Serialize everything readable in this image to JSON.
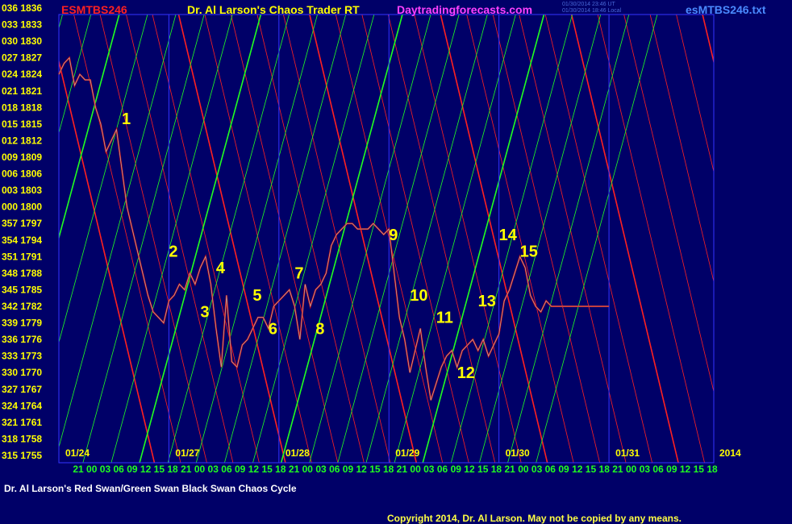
{
  "header": {
    "symbol": "ESMTBS246",
    "title": "Dr. Al Larson's Chaos Trader RT",
    "site": "Daytradingforecasts.com",
    "timestamp_line1": "01/30/2014 23:46 UT",
    "timestamp_line2": "01/30/2014 18:46 Local",
    "filename": "esMTBS246.txt"
  },
  "footer": {
    "caption": "Dr. Al Larson's Red Swan/Green Swan Black Swan Chaos Cycle",
    "copyright": "Copyright 2014, Dr. Al Larson. May not be copied by any means."
  },
  "colors": {
    "background": "#000068",
    "price_line": "#d40000",
    "price_highlight": "#aaaaaa",
    "red_lines": "#ff2020",
    "green_lines": "#20ff20",
    "frame": "#3333ff",
    "axis_label": "#ffff00",
    "time_label": "#20ff20",
    "annotation": "#ffff00",
    "symbol_color": "#ff2020",
    "title_color": "#ffff00",
    "site_color": "#ff40ff",
    "filename_color": "#4a8aff"
  },
  "chart_data": {
    "type": "line",
    "title": "",
    "xlabel": "",
    "ylabel": "",
    "xlim": [
      0,
      125
    ],
    "ylim": [
      1755,
      1836
    ],
    "y_tick_labels": [
      "036 1836",
      "033 1833",
      "030 1830",
      "027 1827",
      "024 1824",
      "021 1821",
      "018 1818",
      "015 1815",
      "012 1812",
      "009 1809",
      "006 1806",
      "003 1803",
      "000 1800",
      "357 1797",
      "354 1794",
      "351 1791",
      "348 1788",
      "345 1785",
      "342 1782",
      "339 1779",
      "336 1776",
      "333 1773",
      "330 1770",
      "327 1767",
      "324 1764",
      "321 1761",
      "318 1758",
      "315 1755"
    ],
    "y_tick_values": [
      1836,
      1833,
      1830,
      1827,
      1824,
      1821,
      1818,
      1815,
      1812,
      1809,
      1806,
      1803,
      1800,
      1797,
      1794,
      1791,
      1788,
      1785,
      1782,
      1779,
      1776,
      1773,
      1770,
      1767,
      1764,
      1761,
      1758,
      1755
    ],
    "x_tick_labels": [
      "21",
      "00",
      "03",
      "06",
      "09",
      "12",
      "15",
      "18",
      "21",
      "00",
      "03",
      "06",
      "09",
      "12",
      "15",
      "18",
      "21",
      "00",
      "03",
      "06",
      "09",
      "12",
      "15",
      "18",
      "21",
      "00",
      "03",
      "06",
      "09",
      "12",
      "15",
      "18",
      "21",
      "00",
      "03",
      "06",
      "09",
      "12",
      "15",
      "18",
      "21",
      "00",
      "03",
      "06",
      "09",
      "12",
      "15",
      "18"
    ],
    "day_labels": [
      {
        "label": "01/24",
        "x": 0
      },
      {
        "label": "01/27",
        "x": 21
      },
      {
        "label": "01/28",
        "x": 42
      },
      {
        "label": "01/29",
        "x": 63
      },
      {
        "label": "01/30",
        "x": 84
      },
      {
        "label": "01/31",
        "x": 105
      },
      {
        "label": "2014",
        "x": 126
      }
    ],
    "day_separators": [
      21,
      42,
      63,
      84,
      105
    ],
    "series": [
      {
        "x": [
          0,
          1,
          2,
          3,
          4,
          5,
          6,
          7,
          8,
          9,
          10,
          11,
          12,
          13,
          14,
          15,
          16,
          17,
          18,
          19,
          20,
          21,
          22,
          23,
          24,
          25,
          26,
          27,
          28,
          29,
          30,
          31,
          32,
          33,
          34,
          35,
          36,
          37,
          38,
          39,
          40,
          41,
          42,
          43,
          44,
          45,
          46,
          47,
          48,
          49,
          50,
          51,
          52,
          53,
          54,
          55,
          56,
          57,
          58,
          59,
          60,
          61,
          62,
          63,
          64,
          65,
          66,
          67,
          68,
          69,
          70,
          71,
          72,
          73,
          74,
          75,
          76,
          77,
          78,
          79,
          80,
          81,
          82,
          83,
          84,
          85,
          86,
          87,
          88,
          89,
          90,
          91,
          92,
          93,
          94,
          95,
          96,
          97,
          98,
          99,
          100,
          101,
          102,
          103,
          104,
          105
        ],
        "y": [
          1824,
          1826,
          1827,
          1822,
          1824,
          1823,
          1823,
          1818,
          1815,
          1810,
          1812,
          1814,
          1807,
          1800,
          1796,
          1792,
          1788,
          1784,
          1781,
          1780,
          1779,
          1783,
          1784,
          1786,
          1785,
          1788,
          1786,
          1789,
          1791,
          1786,
          1778,
          1771,
          1784,
          1772,
          1771,
          1775,
          1776,
          1778,
          1780,
          1780,
          1778,
          1782,
          1783,
          1784,
          1785,
          1782,
          1776,
          1786,
          1782,
          1785,
          1786,
          1788,
          1793,
          1795,
          1796,
          1797,
          1797,
          1796,
          1796,
          1796,
          1797,
          1796,
          1795,
          1796,
          1788,
          1780,
          1776,
          1770,
          1774,
          1778,
          1771,
          1765,
          1768,
          1771,
          1773,
          1774,
          1771,
          1774,
          1775,
          1776,
          1774,
          1776,
          1773,
          1775,
          1777,
          1783,
          1785,
          1788,
          1791,
          1789,
          1784,
          1782,
          1781,
          1783,
          1782,
          1782,
          1782,
          1782,
          1782,
          1782,
          1782,
          1782,
          1782,
          1782,
          1782,
          1782
        ]
      }
    ],
    "red_line_slope": -4.2,
    "red_line_intercepts": [
      -9,
      12,
      33,
      54,
      75,
      96,
      117,
      138,
      159,
      180,
      201,
      222,
      243,
      264,
      285,
      306,
      327,
      348,
      369,
      390,
      411,
      432,
      453,
      474,
      495,
      516,
      537,
      558,
      579,
      600
    ],
    "green_line_slope": 3.7,
    "green_line_intercepts": [
      -180,
      -160,
      -140,
      -120,
      -100,
      -80,
      -60,
      -40,
      -20,
      0,
      20,
      40,
      60,
      80,
      100,
      120,
      140,
      160,
      180,
      200,
      220,
      240,
      260,
      280,
      300
    ],
    "annotations": [
      {
        "label": "1",
        "x": 12,
        "y": 1815
      },
      {
        "label": "2",
        "x": 21,
        "y": 1791
      },
      {
        "label": "3",
        "x": 27,
        "y": 1780
      },
      {
        "label": "4",
        "x": 30,
        "y": 1788
      },
      {
        "label": "5",
        "x": 37,
        "y": 1783
      },
      {
        "label": "6",
        "x": 40,
        "y": 1777
      },
      {
        "label": "7",
        "x": 45,
        "y": 1787
      },
      {
        "label": "8",
        "x": 49,
        "y": 1777
      },
      {
        "label": "9",
        "x": 63,
        "y": 1794
      },
      {
        "label": "10",
        "x": 67,
        "y": 1783
      },
      {
        "label": "11",
        "x": 72,
        "y": 1779
      },
      {
        "label": "12",
        "x": 76,
        "y": 1769
      },
      {
        "label": "13",
        "x": 80,
        "y": 1782
      },
      {
        "label": "14",
        "x": 84,
        "y": 1794
      },
      {
        "label": "15",
        "x": 88,
        "y": 1791
      }
    ]
  }
}
